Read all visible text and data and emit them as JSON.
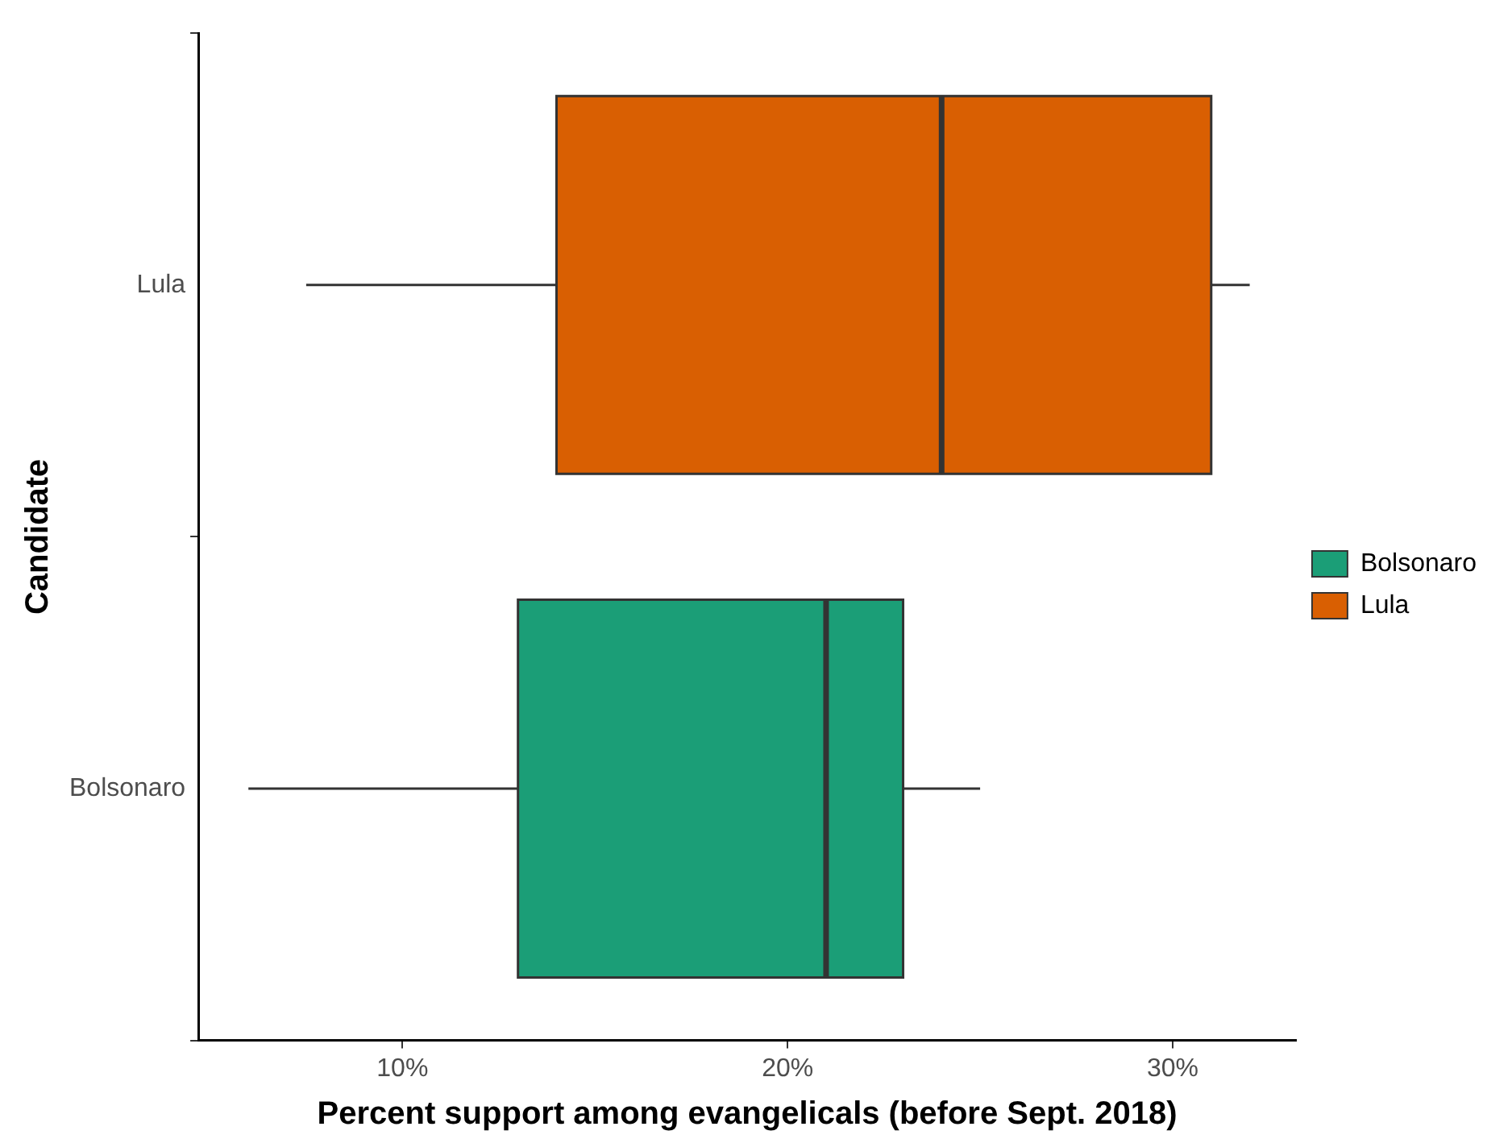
{
  "chart_data": {
    "type": "box",
    "orientation": "horizontal",
    "xlabel": "Percent support among evangelicals (before Sept. 2018)",
    "ylabel": "Candidate",
    "categories": [
      "Lula",
      "Bolsonaro"
    ],
    "series": [
      {
        "name": "Bolsonaro",
        "color": "#1b9e77",
        "boxes": [
          null,
          {
            "low": 6,
            "q1": 13,
            "median": 21,
            "q3": 23,
            "high": 25
          }
        ]
      },
      {
        "name": "Lula",
        "color": "#d95f02",
        "boxes": [
          {
            "low": 7.5,
            "q1": 14,
            "median": 24,
            "q3": 31,
            "high": 32
          },
          null
        ]
      }
    ],
    "xlim": [
      4.7,
      33.2
    ],
    "xticks": [
      {
        "value": 10,
        "label": "10%"
      },
      {
        "value": 20,
        "label": "20%"
      },
      {
        "value": 30,
        "label": "30%"
      }
    ],
    "grid": false,
    "legend": "right"
  }
}
